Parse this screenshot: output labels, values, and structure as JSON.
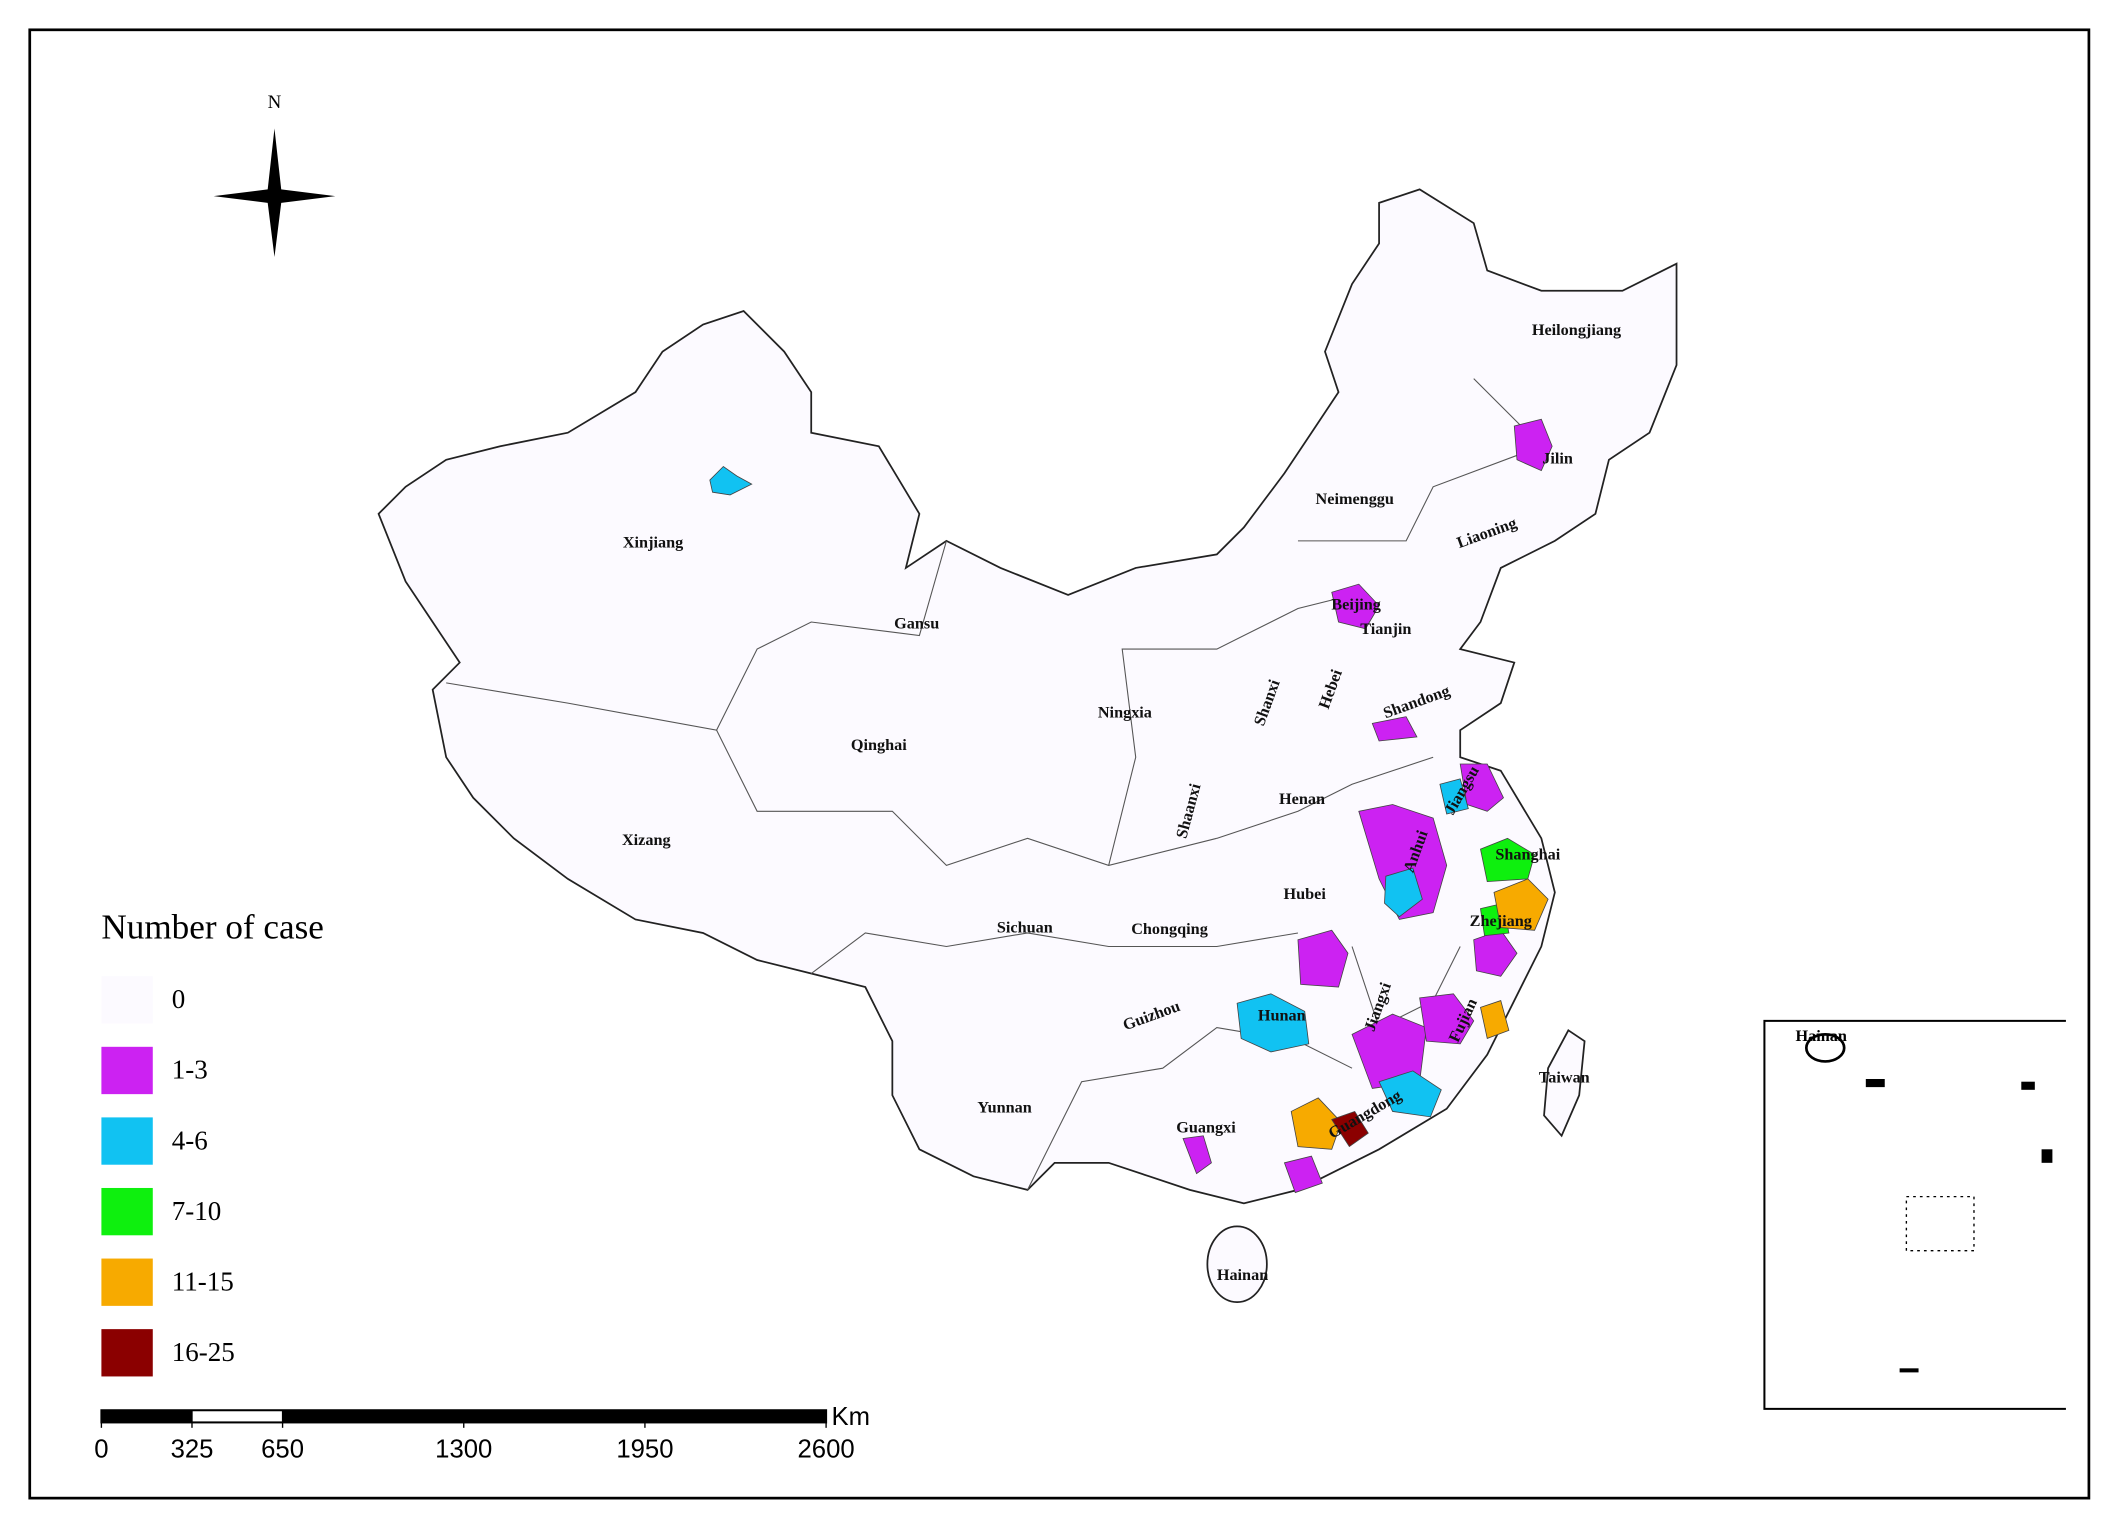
{
  "compass": "N",
  "legend": {
    "title": "Number of case",
    "items": [
      {
        "label": "0",
        "color": "#fcfaff"
      },
      {
        "label": "1-3",
        "color": "#cc22f2"
      },
      {
        "label": "4-6",
        "color": "#11c2f2"
      },
      {
        "label": "7-10",
        "color": "#0ef00e"
      },
      {
        "label": "11-15",
        "color": "#f7aa00"
      },
      {
        "label": "16-25",
        "color": "#8b0000"
      }
    ]
  },
  "provinces": [
    "Heilongjiang",
    "Jilin",
    "Liaoning",
    "Neimenggu",
    "Beijing",
    "Tianjin",
    "Hebei",
    "Shanxi",
    "Shandong",
    "Xinjiang",
    "Gansu",
    "Ningxia",
    "Qinghai",
    "Xizang",
    "Shaanxi",
    "Henan",
    "Jiangsu",
    "Anhui",
    "Shanghai",
    "Hubei",
    "Sichuan",
    "Chongqing",
    "Zhejiang",
    "Hunan",
    "Jiangxi",
    "Fujian",
    "Guizhou",
    "Yunnan",
    "Guangxi",
    "Guangdong",
    "Taiwan",
    "Hainan"
  ],
  "inset_label": "Hainan",
  "scale_bar": {
    "ticks": [
      0,
      325,
      650,
      1300,
      1950,
      2600
    ],
    "unit": "Km"
  }
}
